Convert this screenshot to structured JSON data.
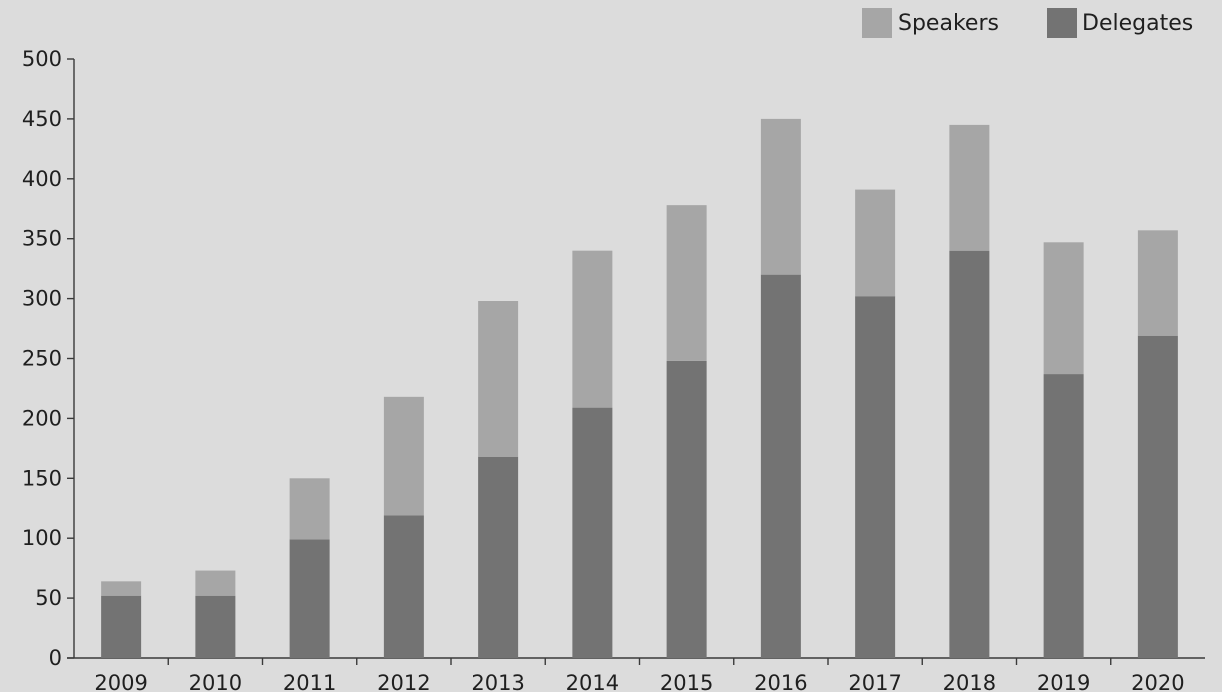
{
  "chart_data": {
    "type": "bar",
    "stacked": true,
    "categories": [
      "2009",
      "2010",
      "2011",
      "2012",
      "2013",
      "2014",
      "2015",
      "2016",
      "2017",
      "2018",
      "2019",
      "2020"
    ],
    "series": [
      {
        "name": "Delegates",
        "color": "#737373",
        "values": [
          52,
          52,
          99,
          119,
          168,
          209,
          248,
          320,
          302,
          340,
          237,
          269
        ]
      },
      {
        "name": "Speakers",
        "color": "#a6a6a6",
        "values": [
          12,
          21,
          51,
          99,
          130,
          131,
          130,
          130,
          89,
          105,
          110,
          88
        ]
      }
    ],
    "title": "",
    "xlabel": "",
    "ylabel": "",
    "ylim": [
      0,
      500
    ],
    "yticks": [
      "0",
      "50",
      "100",
      "150",
      "200",
      "250",
      "300",
      "350",
      "400",
      "450",
      "500"
    ],
    "grid": false,
    "legend": {
      "placement": "top-right",
      "items": [
        {
          "label": "Speakers",
          "color": "#a6a6a6"
        },
        {
          "label": "Delegates",
          "color": "#737373"
        }
      ]
    }
  }
}
